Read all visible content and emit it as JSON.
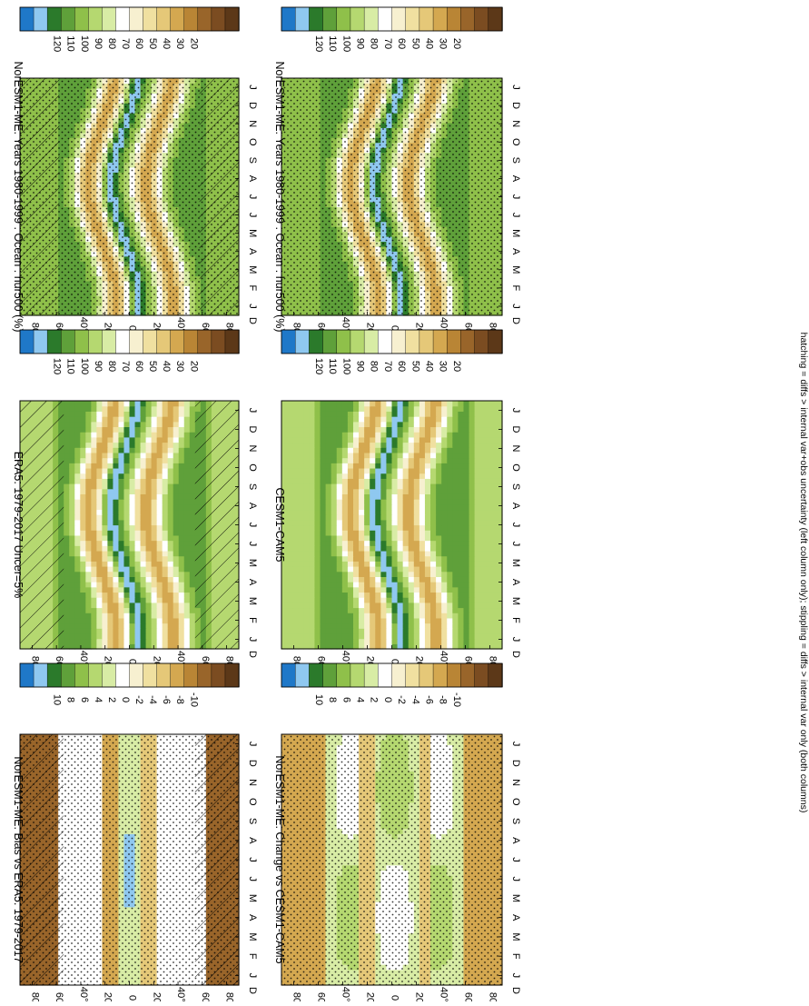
{
  "footnote": "hatching = diffs > internal var+obs uncertainty (left column only); stippling = diffs > internal var only (both columns)",
  "chart_data": [
    {
      "type": "heatmap",
      "title": "NorESM1-ME: Years 1980-1999 : Ocean : hur500 (%)",
      "months": [
        "J",
        "F",
        "M",
        "A",
        "M",
        "J",
        "J",
        "A",
        "S",
        "O",
        "N",
        "D",
        "J"
      ],
      "lat_ticks": [
        "80",
        "60",
        "40°N",
        "20",
        "0",
        "20",
        "40°S",
        "60",
        "80"
      ],
      "month_axis_label": "D",
      "colorbar": [
        "120",
        "110",
        "100",
        "90",
        "80",
        "70",
        "60",
        "50",
        "40",
        "30",
        "20"
      ],
      "field": "abs",
      "hatch": "full",
      "stipple": true
    },
    {
      "type": "heatmap",
      "title": "NorESM1-ME: Years 1980-1999 : Ocean : hur500 (%)",
      "months": [
        "J",
        "F",
        "M",
        "A",
        "M",
        "J",
        "J",
        "A",
        "S",
        "O",
        "N",
        "D",
        "J"
      ],
      "lat_ticks": [
        "80",
        "60",
        "40°N",
        "20",
        "0",
        "20",
        "40°S",
        "60",
        "80"
      ],
      "month_axis_label": "D",
      "colorbar": [
        "120",
        "110",
        "100",
        "90",
        "80",
        "70",
        "60",
        "50",
        "40",
        "30",
        "20"
      ],
      "field": "abs",
      "hatch": "none",
      "stipple": true
    },
    {
      "type": "heatmap",
      "title": "ERA5: 1979-2017 Uncer=5%",
      "months": [
        "J",
        "F",
        "M",
        "A",
        "M",
        "J",
        "J",
        "A",
        "S",
        "O",
        "N",
        "D",
        "J"
      ],
      "lat_ticks": [
        "80",
        "60",
        "40°N",
        "20",
        "0",
        "20",
        "40°S",
        "60",
        "80"
      ],
      "month_axis_label": "D",
      "colorbar": [
        "120",
        "110",
        "100",
        "90",
        "80",
        "70",
        "60",
        "50",
        "40",
        "30",
        "20"
      ],
      "field": "obs",
      "hatch": "polar",
      "stipple": false
    },
    {
      "type": "heatmap",
      "title": "CESM1-CAM5",
      "months": [
        "J",
        "F",
        "M",
        "A",
        "M",
        "J",
        "J",
        "A",
        "S",
        "O",
        "N",
        "D",
        "J"
      ],
      "lat_ticks": [
        "80",
        "60",
        "40°N",
        "20",
        "0",
        "20",
        "40°S",
        "60",
        "80"
      ],
      "month_axis_label": "D",
      "colorbar": [
        "120",
        "110",
        "100",
        "90",
        "80",
        "70",
        "60",
        "50",
        "40",
        "30",
        "20"
      ],
      "field": "obs",
      "hatch": "none",
      "stipple": false
    },
    {
      "type": "heatmap",
      "title": "NorESM1-ME: Bias vs ERA5: 1979-2017",
      "months": [
        "J",
        "F",
        "M",
        "A",
        "M",
        "J",
        "J",
        "A",
        "S",
        "O",
        "N",
        "D",
        "J"
      ],
      "lat_ticks": [
        "80",
        "60",
        "40°N",
        "20",
        "0",
        "20",
        "40°S",
        "60",
        "80"
      ],
      "month_axis_label": "D",
      "colorbar": [
        "10",
        "8",
        "6",
        "4",
        "2",
        "0",
        "-2",
        "-4",
        "-6",
        "-8",
        "-10"
      ],
      "field": "diff",
      "hatch": "polar",
      "stipple": true
    },
    {
      "type": "heatmap",
      "title": "NorESM1-ME: Change vs CESM1-CAM5",
      "months": [
        "J",
        "F",
        "M",
        "A",
        "M",
        "J",
        "J",
        "A",
        "S",
        "O",
        "N",
        "D",
        "J"
      ],
      "lat_ticks": [
        "80",
        "60",
        "40°N",
        "20",
        "0",
        "20",
        "40°S",
        "60",
        "80"
      ],
      "month_axis_label": "D",
      "colorbar": [
        "10",
        "8",
        "6",
        "4",
        "2",
        "0",
        "-2",
        "-4",
        "-6",
        "-8",
        "-10"
      ],
      "field": "diff2",
      "hatch": "none",
      "stipple": true
    }
  ],
  "colors": {
    "scale": [
      "#1f78c8",
      "#8fc8f0",
      "#2b7a2b",
      "#5fa03a",
      "#8fc04a",
      "#b5d870",
      "#d8eca5",
      "#ffffff",
      "#f7f0d0",
      "#f0e0a0",
      "#e5c878",
      "#d4a850",
      "#b98535",
      "#99652a",
      "#7b4c21",
      "#5c3818"
    ]
  }
}
